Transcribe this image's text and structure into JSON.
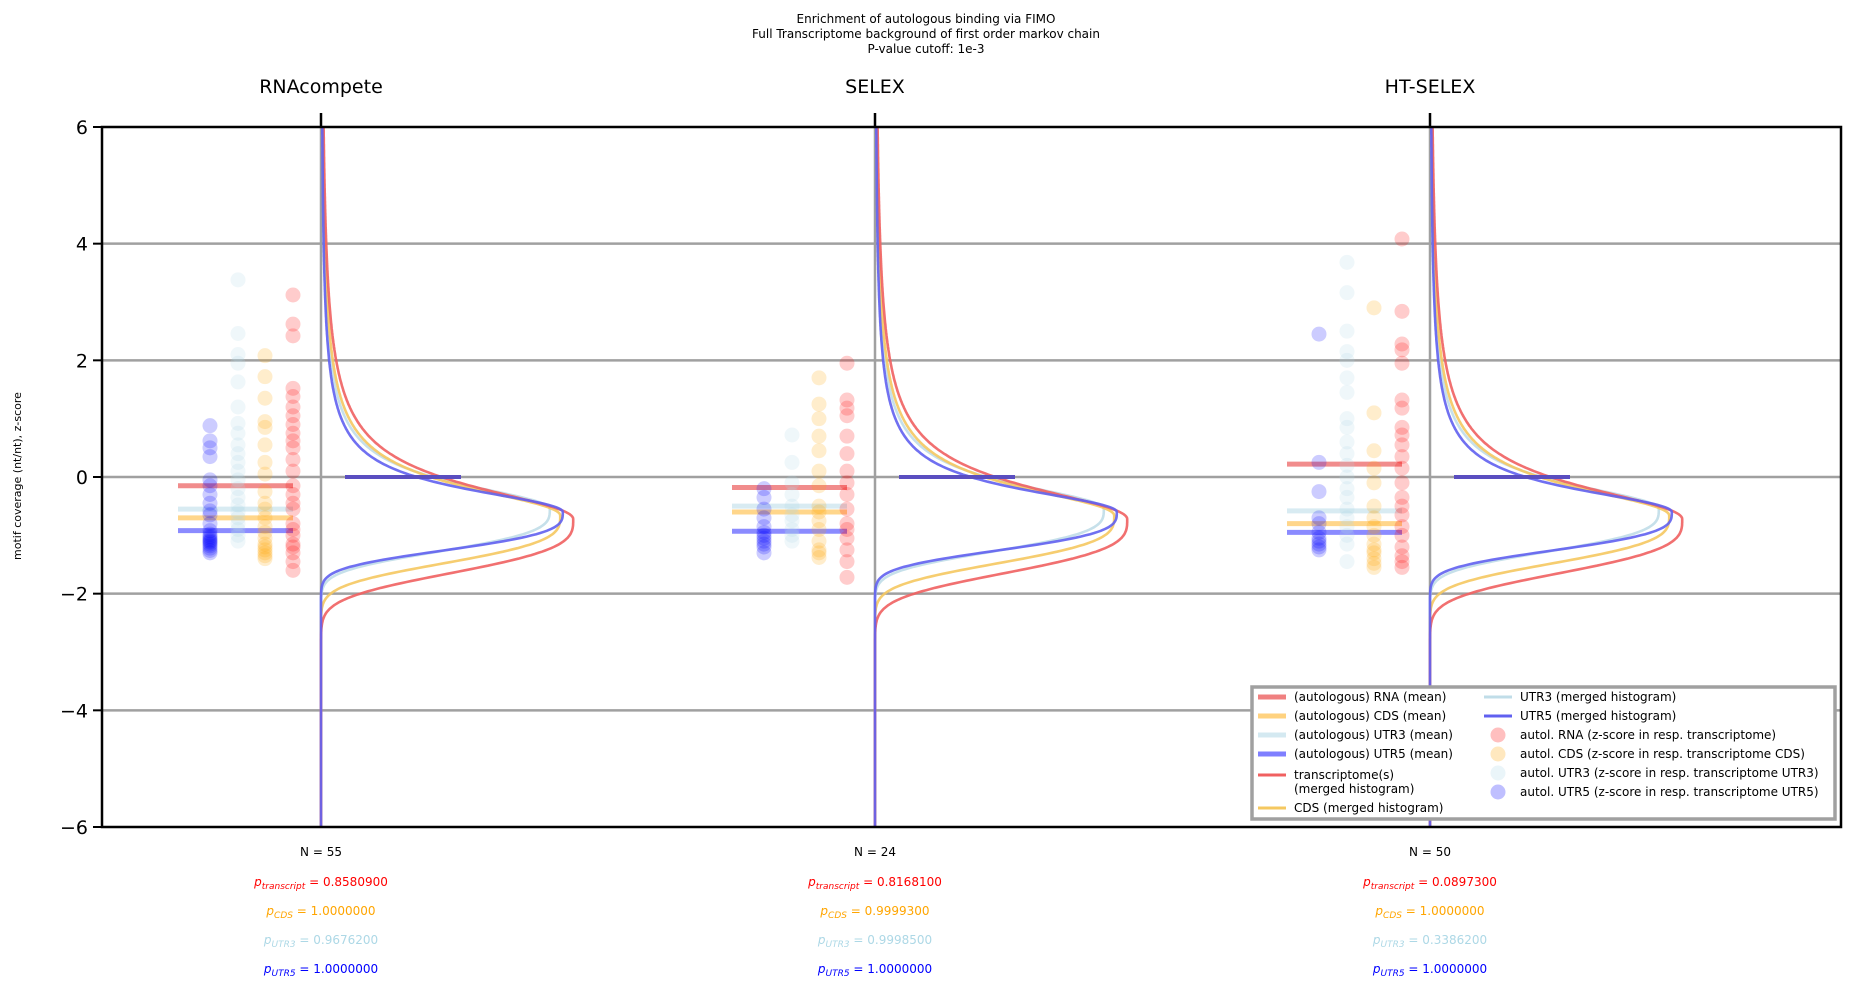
{
  "chart_data": {
    "type": "scatter",
    "title_lines": [
      "Enrichment of autologous binding via FIMO",
      "Full Transcriptome background of first order markov chain",
      "P-value cutoff: 1e-3"
    ],
    "xlabel": "",
    "ylabel": "motif coverage (nt/nt), z-score",
    "ylim": [
      -6,
      6
    ],
    "yticks": [
      -6,
      -4,
      -2,
      0,
      2,
      4,
      6
    ],
    "ytick_labels": [
      "−6",
      "−4",
      "−2",
      "0",
      "2",
      "4",
      "6"
    ],
    "grid": true,
    "legend_placement": "lower-right",
    "colors": {
      "RNA": "#ff0000",
      "CDS": "#ffa500",
      "UTR3": "#add8e6",
      "UTR5": "#0000ff",
      "RNA_mean": "#f08080",
      "CDS_mean": "#ffd27f",
      "UTR3_mean": "#d4e9f1",
      "UTR5_mean": "#7f7fff",
      "hist_RNA": "#f06060",
      "hist_CDS": "#f5c860",
      "hist_UTR3": "#c0dde8",
      "hist_UTR5": "#6060f0",
      "zero_bar": "#5a4ec0",
      "grid": "#a0a0a0"
    },
    "legend": [
      {
        "key": "RNA_mean",
        "kind": "line",
        "label": "(autologous) RNA (mean)"
      },
      {
        "key": "CDS_mean",
        "kind": "line",
        "label": "(autologous) CDS (mean)"
      },
      {
        "key": "UTR3_mean",
        "kind": "line",
        "label": "(autologous) UTR3 (mean)"
      },
      {
        "key": "UTR5_mean",
        "kind": "line",
        "label": "(autologous) UTR5 (mean)"
      },
      {
        "key": "hist_RNA",
        "kind": "thinline",
        "label": "transcriptome(s)",
        "label2": "(merged histogram)"
      },
      {
        "key": "hist_CDS",
        "kind": "thinline",
        "label": "CDS (merged histogram)"
      },
      {
        "key": "hist_UTR3",
        "kind": "thinline",
        "label": "UTR3 (merged histogram)"
      },
      {
        "key": "hist_UTR5",
        "kind": "thinline",
        "label": "UTR5 (merged histogram)"
      },
      {
        "key": "RNA",
        "kind": "dot",
        "label": "autol. RNA (z-score in resp. transcriptome)"
      },
      {
        "key": "CDS",
        "kind": "dot",
        "label": "autol. CDS (z-score in resp. transcriptome CDS)"
      },
      {
        "key": "UTR3",
        "kind": "dot",
        "label": "autol. UTR3 (z-score in resp. transcriptome UTR3)"
      },
      {
        "key": "UTR5",
        "kind": "dot",
        "label": "autol. UTR5 (z-score in resp. transcriptome UTR5)"
      }
    ],
    "hist_peak": {
      "RNA": -0.72,
      "CDS": -0.66,
      "UTR3": -0.55,
      "UTR5": -0.6
    },
    "panels": [
      {
        "title": "RNAcompete",
        "n_label": "N = 55",
        "p_values": {
          "transcript": "0.8580900",
          "CDS": "1.0000000",
          "UTR3": "0.9676200",
          "UTR5": "1.0000000"
        },
        "means": {
          "RNA": -0.15,
          "CDS": -0.7,
          "UTR3": -0.55,
          "UTR5": -0.92
        },
        "points": {
          "UTR5": [
            0.88,
            0.62,
            0.5,
            0.35,
            -0.05,
            -0.15,
            -0.3,
            -0.45,
            -0.58,
            -0.65,
            -0.8,
            -0.92,
            -0.98,
            -1.02,
            -1.05,
            -1.08,
            -1.1,
            -1.12,
            -1.15,
            -1.18,
            -1.22,
            -1.26,
            -1.3
          ],
          "UTR3": [
            3.38,
            2.46,
            2.1,
            1.95,
            1.63,
            1.2,
            0.92,
            0.75,
            0.55,
            0.4,
            0.25,
            0.1,
            -0.05,
            -0.2,
            -0.35,
            -0.48,
            -0.6,
            -0.7,
            -0.8,
            -0.9,
            -1.0,
            -1.1
          ],
          "CDS": [
            2.08,
            1.72,
            1.35,
            0.95,
            0.85,
            0.55,
            0.25,
            0.05,
            -0.25,
            -0.45,
            -0.55,
            -0.7,
            -0.85,
            -0.95,
            -1.05,
            -1.15,
            -1.2,
            -1.25,
            -1.3,
            -1.35,
            -1.4
          ],
          "RNA": [
            3.12,
            2.62,
            2.42,
            1.52,
            1.38,
            1.2,
            1.05,
            0.9,
            0.75,
            0.62,
            0.5,
            0.3,
            0.1,
            -0.15,
            -0.3,
            -0.45,
            -0.55,
            -0.8,
            -0.9,
            -1.0,
            -1.15,
            -1.2,
            -1.3,
            -1.45,
            -1.6
          ]
        }
      },
      {
        "title": "SELEX",
        "n_label": "N = 24",
        "p_values": {
          "transcript": "0.8168100",
          "CDS": "0.9999300",
          "UTR3": "0.9998500",
          "UTR5": "1.0000000"
        },
        "means": {
          "RNA": -0.18,
          "CDS": -0.6,
          "UTR3": -0.5,
          "UTR5": -0.93
        },
        "points": {
          "UTR5": [
            -0.2,
            -0.35,
            -0.55,
            -0.7,
            -0.85,
            -0.95,
            -1.0,
            -1.05,
            -1.1,
            -1.15,
            -1.2,
            -1.3
          ],
          "UTR3": [
            0.72,
            0.25,
            -0.1,
            -0.3,
            -0.5,
            -0.65,
            -0.75,
            -0.9,
            -1.0,
            -1.1
          ],
          "CDS": [
            1.7,
            1.25,
            1.0,
            0.7,
            0.45,
            0.1,
            -0.15,
            -0.5,
            -0.6,
            -0.75,
            -0.9,
            -1.1,
            -1.25,
            -1.3,
            -1.38
          ],
          "RNA": [
            1.95,
            1.32,
            1.18,
            1.05,
            0.7,
            0.4,
            0.1,
            -0.1,
            -0.3,
            -0.55,
            -0.8,
            -0.9,
            -1.05,
            -1.25,
            -1.45,
            -1.72
          ]
        }
      },
      {
        "title": "HT-SELEX",
        "n_label": "N = 50",
        "p_values": {
          "transcript": "0.0897300",
          "CDS": "1.0000000",
          "UTR3": "0.3386200",
          "UTR5": "1.0000000"
        },
        "means": {
          "RNA": 0.22,
          "CDS": -0.8,
          "UTR3": -0.58,
          "UTR5": -0.95
        },
        "points": {
          "UTR5": [
            2.45,
            0.25,
            -0.25,
            -0.7,
            -0.8,
            -0.95,
            -1.05,
            -1.1,
            -1.15,
            -1.2,
            -1.25
          ],
          "UTR3": [
            3.68,
            3.16,
            2.5,
            2.15,
            2.0,
            1.7,
            1.45,
            1.0,
            0.85,
            0.6,
            0.4,
            0.2,
            0.0,
            -0.2,
            -0.35,
            -0.55,
            -0.7,
            -0.85,
            -1.0,
            -1.15,
            -1.45
          ],
          "CDS": [
            2.9,
            1.1,
            0.45,
            0.15,
            -0.1,
            -0.5,
            -0.7,
            -0.85,
            -1.0,
            -1.15,
            -1.25,
            -1.3,
            -1.4,
            -1.48,
            -1.55
          ],
          "RNA": [
            4.08,
            2.84,
            2.28,
            2.18,
            1.95,
            1.32,
            1.18,
            0.85,
            0.72,
            0.55,
            0.35,
            0.15,
            -0.1,
            -0.35,
            -0.5,
            -0.65,
            -0.85,
            -1.0,
            -1.2,
            -1.35,
            -1.45,
            -1.55
          ]
        }
      }
    ]
  }
}
